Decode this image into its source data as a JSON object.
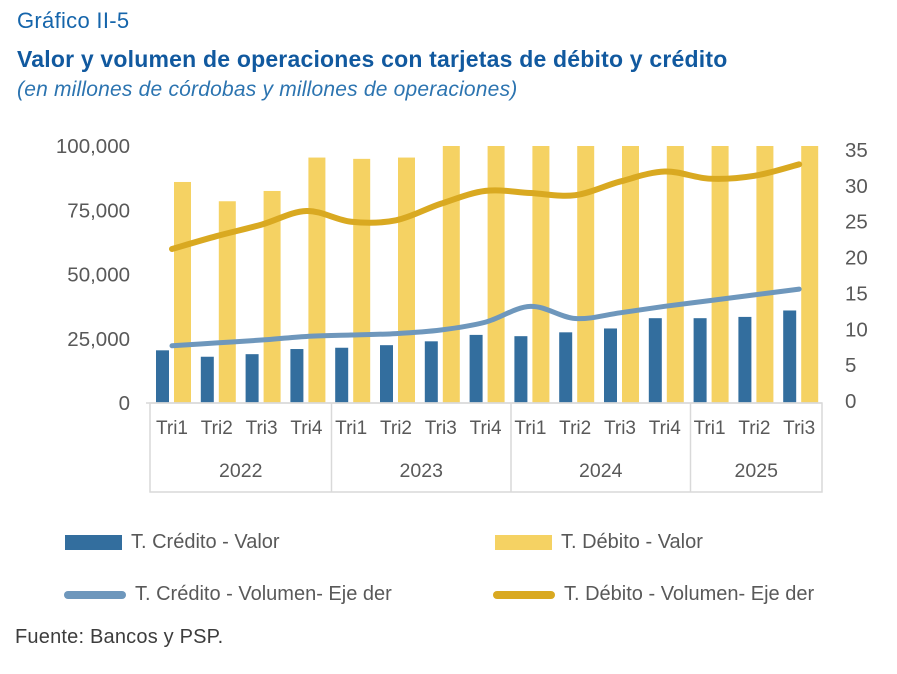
{
  "header": {
    "label": "Gráfico II-5",
    "title": "Valor y volumen de operaciones con tarjetas de débito y crédito",
    "subtitle": "(en millones de córdobas y millones de operaciones)"
  },
  "colors": {
    "label_text": "#1565ab",
    "title_text": "#11599f",
    "subtitle_text": "#2c74b0",
    "axis_text": "#595959",
    "box_border": "#d9d9d9",
    "credito_bar": "#336e9e",
    "debito_bar": "#f5d263",
    "credito_line": "#6e97bc",
    "debito_line": "#d9a921"
  },
  "chart_data": {
    "type": "bar+line",
    "title": "Valor y volumen de operaciones con tarjetas de débito y crédito",
    "subtitle": "(en millones de córdobas y millones de operaciones)",
    "grid": "off",
    "legend_position": "bottom",
    "left_axis": {
      "min": 0,
      "max": 100000,
      "ticks": [
        "100,000",
        "75,000",
        "50,000",
        "25,000",
        "0"
      ],
      "tick_values": [
        100000,
        75000,
        50000,
        25000,
        0
      ]
    },
    "right_axis": {
      "min": 0,
      "max": 35,
      "ticks": [
        "35",
        "30",
        "25",
        "20",
        "15",
        "10",
        "5",
        "0"
      ],
      "tick_values": [
        35,
        30,
        25,
        20,
        15,
        10,
        5,
        0
      ]
    },
    "groups": [
      {
        "year": "2022",
        "quarters": [
          "Tri1",
          "Tri2",
          "Tri3",
          "Tri4"
        ]
      },
      {
        "year": "2023",
        "quarters": [
          "Tri1",
          "Tri2",
          "Tri3",
          "Tri4"
        ]
      },
      {
        "year": "2024",
        "quarters": [
          "Tri1",
          "Tri2",
          "Tri3",
          "Tri4"
        ]
      },
      {
        "year": "2025",
        "quarters": [
          "Tri1",
          "Tri2",
          "Tri3"
        ]
      }
    ],
    "series": [
      {
        "name": "T. Crédito - Valor",
        "type": "bar",
        "axis": "left",
        "color": "#336e9e",
        "values": [
          20500,
          18000,
          19000,
          21000,
          21500,
          22500,
          24000,
          26500,
          26000,
          27500,
          29000,
          33000,
          33000,
          33500,
          36000
        ]
      },
      {
        "name": "T. Débito - Valor",
        "type": "bar",
        "axis": "left",
        "color": "#f5d263",
        "values": [
          86000,
          78500,
          82500,
          95500,
          95000,
          95500,
          100000,
          100000,
          100000,
          100000,
          100000,
          100000,
          100000,
          100000,
          100000
        ]
      },
      {
        "name": "T. Crédito - Volumen- Eje der",
        "type": "line",
        "axis": "right",
        "color": "#6e97bc",
        "values": [
          7.7,
          8.1,
          8.5,
          9.0,
          9.2,
          9.4,
          9.9,
          11.0,
          13.2,
          11.5,
          12.3,
          13.2,
          14.0,
          14.8,
          15.6
        ]
      },
      {
        "name": "T. Débito - Volumen- Eje der",
        "type": "line",
        "axis": "right",
        "color": "#d9a921",
        "values": [
          21.2,
          23.0,
          24.6,
          26.5,
          25.0,
          25.2,
          27.5,
          29.3,
          29.0,
          28.7,
          30.6,
          32.0,
          31.0,
          31.4,
          33.0
        ]
      }
    ],
    "note": "Débito-Valor bars from 2023 Tri3 onward reach the top of the plot area (≈100,000) and appear clipped."
  },
  "source": "Fuente: Bancos y PSP."
}
